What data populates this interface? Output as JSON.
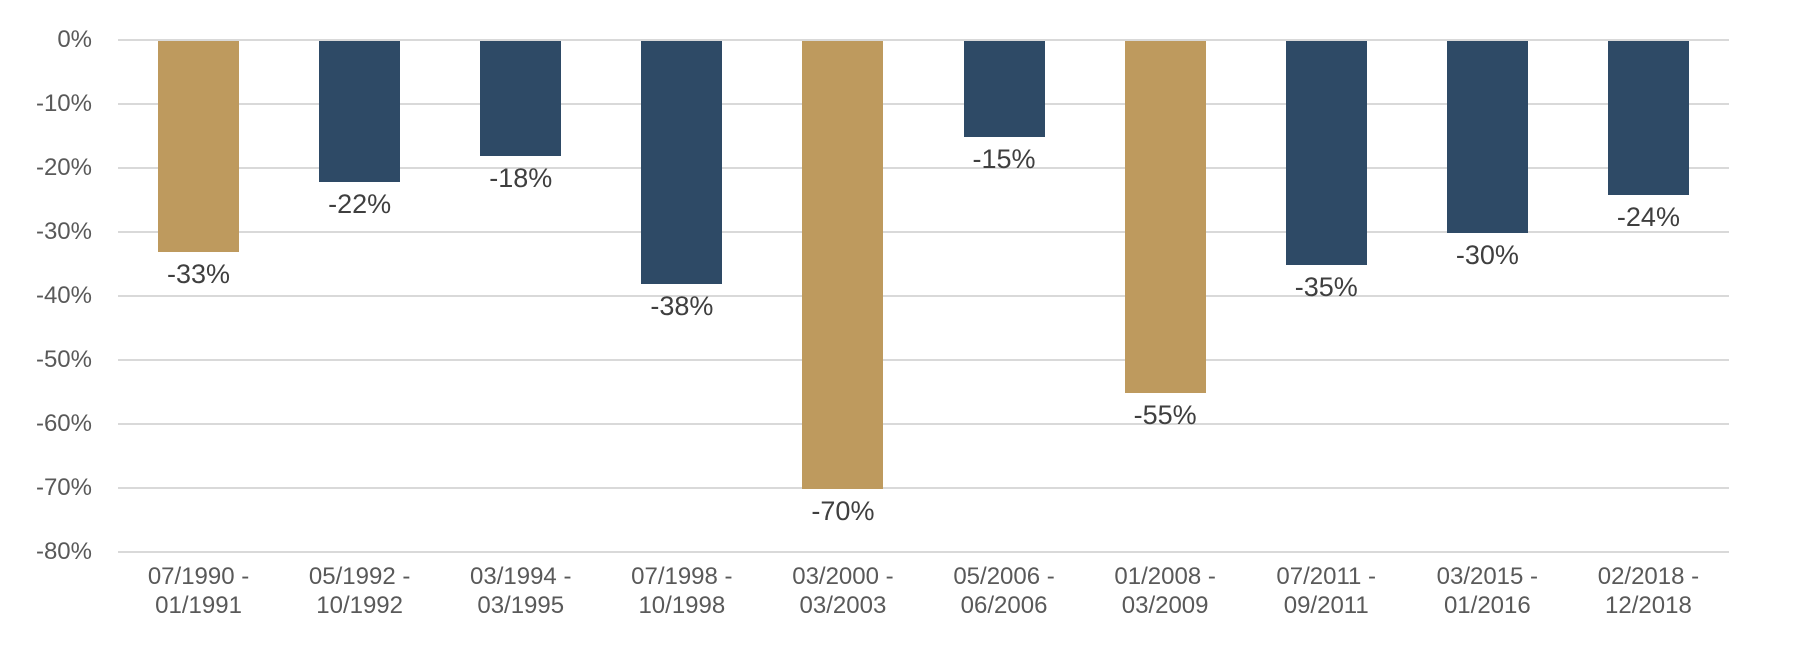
{
  "chart_data": {
    "type": "bar",
    "title": "",
    "xlabel": "",
    "ylabel": "",
    "categories": [
      "07/1990 -\n01/1991",
      "05/1992 -\n10/1992",
      "03/1994 -\n03/1995",
      "07/1998 -\n10/1998",
      "03/2000 -\n03/2003",
      "05/2006 -\n06/2006",
      "01/2008 -\n03/2009",
      "07/2011 -\n09/2011",
      "03/2015 -\n01/2016",
      "02/2018 -\n12/2018"
    ],
    "values": [
      -33,
      -22,
      -18,
      -38,
      -70,
      -15,
      -55,
      -35,
      -30,
      -24
    ],
    "data_labels": [
      "-33%",
      "-22%",
      "-18%",
      "-38%",
      "-70%",
      "-15%",
      "-55%",
      "-35%",
      "-30%",
      "-24%"
    ],
    "bar_colors": [
      "#BE9A5E",
      "#2E4A66",
      "#2E4A66",
      "#2E4A66",
      "#BE9A5E",
      "#2E4A66",
      "#BE9A5E",
      "#2E4A66",
      "#2E4A66",
      "#2E4A66"
    ],
    "palette": {
      "highlight_gold": "#BE9A5E",
      "base_navy": "#2E4A66"
    },
    "y_ticks": [
      "0%",
      "-10%",
      "-20%",
      "-30%",
      "-40%",
      "-50%",
      "-60%",
      "-70%",
      "-80%"
    ],
    "ylim": [
      -80,
      0
    ],
    "grid": true,
    "legend_position": "none",
    "gridline_color": "#D9D9D9",
    "axis_tick_color": "#595959",
    "data_label_color": "#3F3F3F",
    "background_color": "#FFFFFF"
  }
}
